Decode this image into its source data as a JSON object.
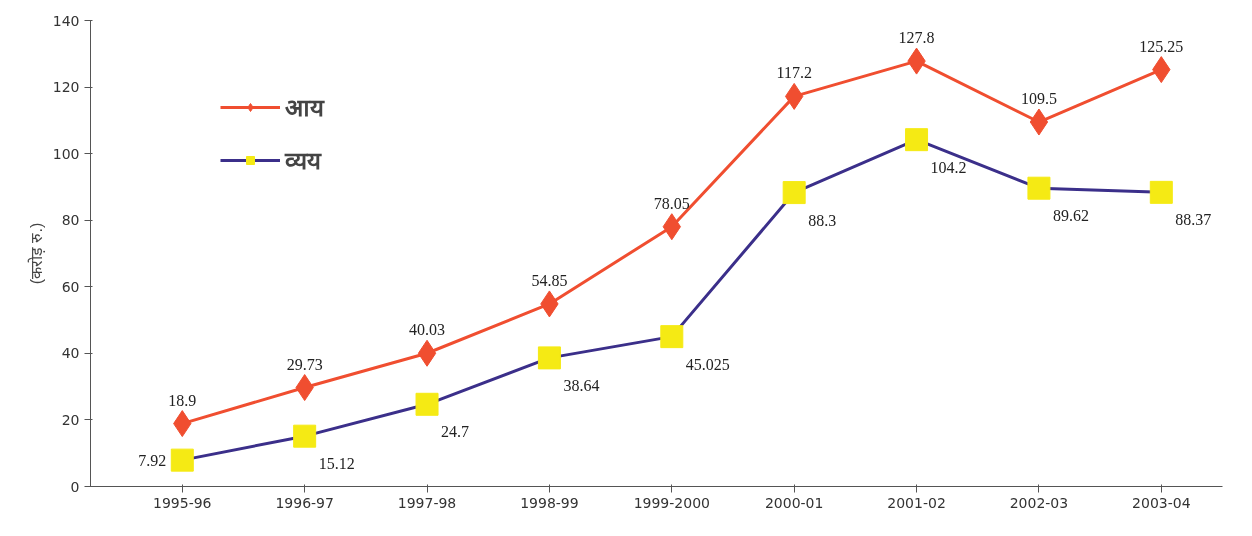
{
  "chart_data": {
    "type": "line",
    "ylabel": "(करोड़ रु.)",
    "categories": [
      "1995-96",
      "1996-97",
      "1997-98",
      "1998-99",
      "1999-2000",
      "2000-01",
      "2001-02",
      "2002-03",
      "2003-04"
    ],
    "series": [
      {
        "name": "आय",
        "color": "#f04e30",
        "marker": "diamond",
        "colors": [
          "#f04e30",
          "#f04e30",
          "#f04e30",
          "#f04e30",
          "#f04e30",
          "#f04e30",
          "#f04e30",
          "#f04e30",
          "#f04e30"
        ],
        "values": [
          18.9,
          29.73,
          40.03,
          54.85,
          78.05,
          117.2,
          127.8,
          109.5,
          125.25
        ]
      },
      {
        "name": "व्यय",
        "color": "#3b2f8a",
        "marker": "square",
        "colors": [
          "#f5ea14",
          "#f5ea14",
          "#f5ea14",
          "#f5ea14",
          "#f5ea14",
          "#f5ea14",
          "#f5ea14",
          "#f5ea14",
          "#f5ea14"
        ],
        "values": [
          7.92,
          15.12,
          24.7,
          38.64,
          45.025,
          88.3,
          104.2,
          89.62,
          88.37
        ]
      }
    ],
    "ylim": [
      0,
      140
    ],
    "yticks": [
      0,
      20,
      40,
      60,
      80,
      100,
      120,
      140
    ],
    "grid": false,
    "legend": "top left",
    "data_labels": true
  }
}
